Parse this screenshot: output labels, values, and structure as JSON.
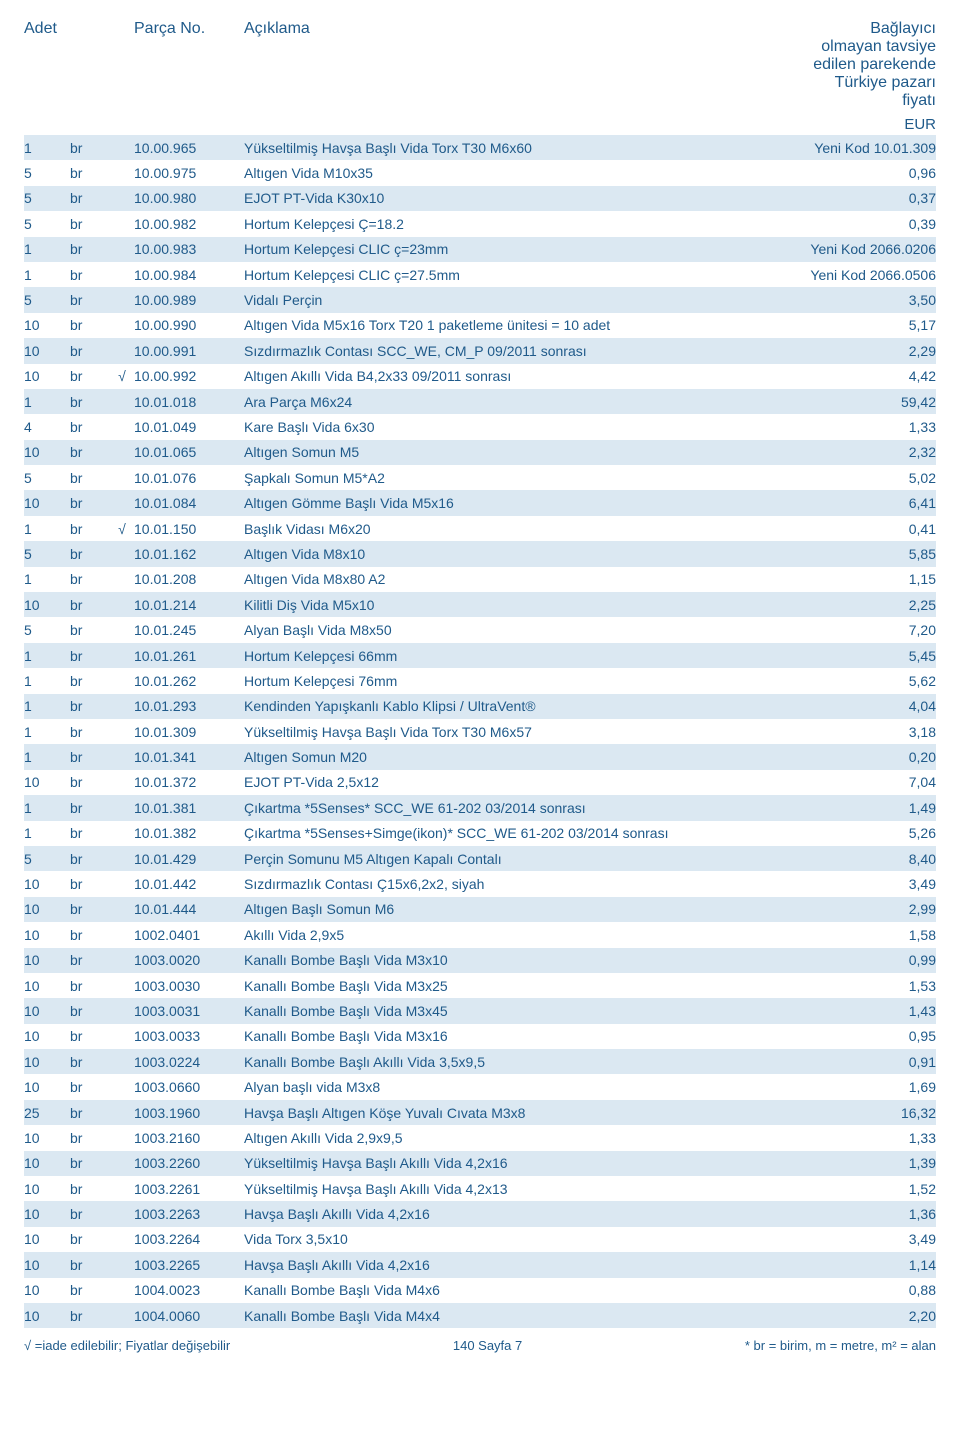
{
  "header": {
    "qty": "Adet",
    "part": "Parça No.",
    "desc": "Açıklama",
    "priceHeader": "Bağlayıcı olmayan tavsiye edilen parekende Türkiye pazarı fiyatı",
    "currency": "EUR"
  },
  "styling": {
    "oddRowBg": "#dbe8f2",
    "evenRowBg": "#ffffff",
    "textColor": "#1f5a8a",
    "fontSize": 14,
    "headerFontSize": 16,
    "rowHeight": 25.4,
    "pageWidth": 960,
    "pageHeight": 1447,
    "columns": {
      "qty": 46,
      "unit": 40,
      "check": 24,
      "part": 110,
      "desc": "flex",
      "price": 130
    }
  },
  "rows": [
    {
      "qty": "1",
      "unit": "br",
      "check": "",
      "part": "10.00.965",
      "desc": "Yükseltilmiş Havşa Başlı Vida Torx T30 M6x60",
      "price": "Yeni Kod 10.01.309"
    },
    {
      "qty": "5",
      "unit": "br",
      "check": "",
      "part": "10.00.975",
      "desc": "Altıgen Vida M10x35",
      "price": "0,96"
    },
    {
      "qty": "5",
      "unit": "br",
      "check": "",
      "part": "10.00.980",
      "desc": "EJOT PT-Vida K30x10",
      "price": "0,37"
    },
    {
      "qty": "5",
      "unit": "br",
      "check": "",
      "part": "10.00.982",
      "desc": "Hortum Kelepçesi Ç=18.2",
      "price": "0,39"
    },
    {
      "qty": "1",
      "unit": "br",
      "check": "",
      "part": "10.00.983",
      "desc": "Hortum Kelepçesi CLIC ç=23mm",
      "price": "Yeni Kod 2066.0206"
    },
    {
      "qty": "1",
      "unit": "br",
      "check": "",
      "part": "10.00.984",
      "desc": "Hortum Kelepçesi CLIC ç=27.5mm",
      "price": "Yeni Kod 2066.0506"
    },
    {
      "qty": "5",
      "unit": "br",
      "check": "",
      "part": "10.00.989",
      "desc": "Vidalı Perçin",
      "price": "3,50"
    },
    {
      "qty": "10",
      "unit": "br",
      "check": "",
      "part": "10.00.990",
      "desc": "Altıgen Vida M5x16 Torx T20  1 paketleme ünitesi = 10 adet",
      "price": "5,17"
    },
    {
      "qty": "10",
      "unit": "br",
      "check": "",
      "part": "10.00.991",
      "desc": "Sızdırmazlık Contası SCC_WE, CM_P 09/2011 sonrası",
      "price": "2,29"
    },
    {
      "qty": "10",
      "unit": "br",
      "check": "√",
      "part": "10.00.992",
      "desc": "Altıgen Akıllı Vida B4,2x33  09/2011 sonrası",
      "price": "4,42"
    },
    {
      "qty": "1",
      "unit": "br",
      "check": "",
      "part": "10.01.018",
      "desc": "Ara Parça M6x24",
      "price": "59,42"
    },
    {
      "qty": "4",
      "unit": "br",
      "check": "",
      "part": "10.01.049",
      "desc": "Kare Başlı Vida 6x30",
      "price": "1,33"
    },
    {
      "qty": "10",
      "unit": "br",
      "check": "",
      "part": "10.01.065",
      "desc": "Altıgen Somun M5",
      "price": "2,32"
    },
    {
      "qty": "5",
      "unit": "br",
      "check": "",
      "part": "10.01.076",
      "desc": "Şapkalı Somun M5*A2",
      "price": "5,02"
    },
    {
      "qty": "10",
      "unit": "br",
      "check": "",
      "part": "10.01.084",
      "desc": "Altıgen Gömme Başlı Vida M5x16",
      "price": "6,41"
    },
    {
      "qty": "1",
      "unit": "br",
      "check": "√",
      "part": "10.01.150",
      "desc": "Başlık Vidası M6x20",
      "price": "0,41"
    },
    {
      "qty": "5",
      "unit": "br",
      "check": "",
      "part": "10.01.162",
      "desc": "Altıgen Vida M8x10",
      "price": "5,85"
    },
    {
      "qty": "1",
      "unit": "br",
      "check": "",
      "part": "10.01.208",
      "desc": "Altıgen Vida M8x80 A2",
      "price": "1,15"
    },
    {
      "qty": "10",
      "unit": "br",
      "check": "",
      "part": "10.01.214",
      "desc": "Kilitli Diş Vida M5x10",
      "price": "2,25"
    },
    {
      "qty": "5",
      "unit": "br",
      "check": "",
      "part": "10.01.245",
      "desc": "Alyan Başlı Vida M8x50",
      "price": "7,20"
    },
    {
      "qty": "1",
      "unit": "br",
      "check": "",
      "part": "10.01.261",
      "desc": "Hortum Kelepçesi 66mm",
      "price": "5,45"
    },
    {
      "qty": "1",
      "unit": "br",
      "check": "",
      "part": "10.01.262",
      "desc": "Hortum Kelepçesi 76mm",
      "price": "5,62"
    },
    {
      "qty": "1",
      "unit": "br",
      "check": "",
      "part": "10.01.293",
      "desc": "Kendinden Yapışkanlı Kablo Klipsi / UltraVent®",
      "price": "4,04"
    },
    {
      "qty": "1",
      "unit": "br",
      "check": "",
      "part": "10.01.309",
      "desc": "Yükseltilmiş Havşa Başlı Vida Torx T30 M6x57",
      "price": "3,18"
    },
    {
      "qty": "1",
      "unit": "br",
      "check": "",
      "part": "10.01.341",
      "desc": "Altıgen Somun M20",
      "price": "0,20"
    },
    {
      "qty": "10",
      "unit": "br",
      "check": "",
      "part": "10.01.372",
      "desc": "EJOT PT-Vida 2,5x12",
      "price": "7,04"
    },
    {
      "qty": "1",
      "unit": "br",
      "check": "",
      "part": "10.01.381",
      "desc": "Çıkartma *5Senses* SCC_WE 61-202 03/2014 sonrası",
      "price": "1,49"
    },
    {
      "qty": "1",
      "unit": "br",
      "check": "",
      "part": "10.01.382",
      "desc": "Çıkartma *5Senses+Simge(ikon)* SCC_WE 61-202 03/2014 sonrası",
      "price": "5,26"
    },
    {
      "qty": "5",
      "unit": "br",
      "check": "",
      "part": "10.01.429",
      "desc": "Perçin Somunu M5 Altıgen Kapalı Contalı",
      "price": "8,40"
    },
    {
      "qty": "10",
      "unit": "br",
      "check": "",
      "part": "10.01.442",
      "desc": "Sızdırmazlık Contası Ç15x6,2x2, siyah",
      "price": "3,49"
    },
    {
      "qty": "10",
      "unit": "br",
      "check": "",
      "part": "10.01.444",
      "desc": "Altıgen Başlı Somun M6",
      "price": "2,99"
    },
    {
      "qty": "10",
      "unit": "br",
      "check": "",
      "part": "1002.0401",
      "desc": "Akıllı Vida 2,9x5",
      "price": "1,58"
    },
    {
      "qty": "10",
      "unit": "br",
      "check": "",
      "part": "1003.0020",
      "desc": "Kanallı Bombe Başlı Vida M3x10",
      "price": "0,99"
    },
    {
      "qty": "10",
      "unit": "br",
      "check": "",
      "part": "1003.0030",
      "desc": "Kanallı Bombe Başlı Vida M3x25",
      "price": "1,53"
    },
    {
      "qty": "10",
      "unit": "br",
      "check": "",
      "part": "1003.0031",
      "desc": "Kanallı Bombe Başlı Vida M3x45",
      "price": "1,43"
    },
    {
      "qty": "10",
      "unit": "br",
      "check": "",
      "part": "1003.0033",
      "desc": "Kanallı Bombe Başlı Vida M3x16",
      "price": "0,95"
    },
    {
      "qty": "10",
      "unit": "br",
      "check": "",
      "part": "1003.0224",
      "desc": "Kanallı Bombe Başlı Akıllı Vida 3,5x9,5",
      "price": "0,91"
    },
    {
      "qty": "10",
      "unit": "br",
      "check": "",
      "part": "1003.0660",
      "desc": "Alyan başlı vida M3x8",
      "price": "1,69"
    },
    {
      "qty": "25",
      "unit": "br",
      "check": "",
      "part": "1003.1960",
      "desc": "Havşa Başlı Altıgen Köşe Yuvalı Cıvata M3x8",
      "price": "16,32"
    },
    {
      "qty": "10",
      "unit": "br",
      "check": "",
      "part": "1003.2160",
      "desc": "Altıgen Akıllı Vida 2,9x9,5",
      "price": "1,33"
    },
    {
      "qty": "10",
      "unit": "br",
      "check": "",
      "part": "1003.2260",
      "desc": "Yükseltilmiş Havşa Başlı Akıllı Vida  4,2x16",
      "price": "1,39"
    },
    {
      "qty": "10",
      "unit": "br",
      "check": "",
      "part": "1003.2261",
      "desc": "Yükseltilmiş Havşa Başlı Akıllı Vida 4,2x13",
      "price": "1,52"
    },
    {
      "qty": "10",
      "unit": "br",
      "check": "",
      "part": "1003.2263",
      "desc": "Havşa Başlı Akıllı Vida 4,2x16",
      "price": "1,36"
    },
    {
      "qty": "10",
      "unit": "br",
      "check": "",
      "part": "1003.2264",
      "desc": "Vida Torx 3,5x10",
      "price": "3,49"
    },
    {
      "qty": "10",
      "unit": "br",
      "check": "",
      "part": "1003.2265",
      "desc": "Havşa Başlı Akıllı Vida 4,2x16",
      "price": "1,14"
    },
    {
      "qty": "10",
      "unit": "br",
      "check": "",
      "part": "1004.0023",
      "desc": "Kanallı Bombe Başlı Vida M4x6",
      "price": "0,88"
    },
    {
      "qty": "10",
      "unit": "br",
      "check": "",
      "part": "1004.0060",
      "desc": "Kanallı Bombe Başlı Vida M4x4",
      "price": "2,20"
    }
  ],
  "footer": {
    "left": "√ =iade edilebilir; Fiyatlar değişebilir",
    "center": "140 Sayfa 7",
    "right": "* br = birim, m = metre, m² = alan"
  }
}
